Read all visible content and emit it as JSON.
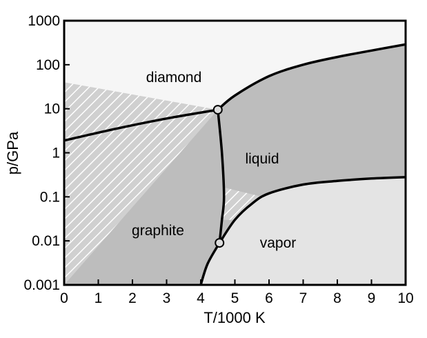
{
  "chart_data": {
    "type": "area",
    "xlabel": "T/1000 K",
    "ylabel": "p/GPa",
    "xlim": [
      0,
      10
    ],
    "ylim": [
      0.001,
      1000
    ],
    "y_scale": "log",
    "grid": false,
    "x_ticks": [
      {
        "value": 0,
        "label": "0"
      },
      {
        "value": 1,
        "label": "1"
      },
      {
        "value": 2,
        "label": "2"
      },
      {
        "value": 3,
        "label": "3"
      },
      {
        "value": 4,
        "label": "4"
      },
      {
        "value": 5,
        "label": "5"
      },
      {
        "value": 6,
        "label": "6"
      },
      {
        "value": 7,
        "label": "7"
      },
      {
        "value": 8,
        "label": "8"
      },
      {
        "value": 9,
        "label": "9"
      },
      {
        "value": 10,
        "label": "10"
      }
    ],
    "y_ticks": [
      {
        "value": 0.001,
        "label": "0.001"
      },
      {
        "value": 0.01,
        "label": "0.01"
      },
      {
        "value": 0.1,
        "label": "0.1"
      },
      {
        "value": 1,
        "label": "1"
      },
      {
        "value": 10,
        "label": "10"
      },
      {
        "value": 100,
        "label": "100"
      },
      {
        "value": 1000,
        "label": "1000"
      }
    ],
    "regions": [
      {
        "label": "diamond",
        "x": 3.5,
        "y": 100,
        "color": "#f6f6f6"
      },
      {
        "label": "liquid",
        "x": 5.8,
        "y": 1,
        "color": "#bdbdbd"
      },
      {
        "label": "graphite",
        "x": 2.8,
        "y": 0.01,
        "color": "#bdbdbd"
      },
      {
        "label": "vapor",
        "x": 6.2,
        "y": 0.008,
        "color": "#e4e4e4"
      }
    ],
    "phase_boundaries": [
      {
        "name": "graphite-diamond",
        "points": [
          [
            0,
            1.9
          ],
          [
            1.5,
            3.5
          ],
          [
            3,
            6
          ],
          [
            4.5,
            9.5
          ]
        ]
      },
      {
        "name": "diamond-liquid",
        "points": [
          [
            4.5,
            9.5
          ],
          [
            5,
            20
          ],
          [
            6,
            55
          ],
          [
            7,
            100
          ],
          [
            8,
            150
          ],
          [
            9,
            210
          ],
          [
            10,
            290
          ]
        ]
      },
      {
        "name": "graphite-liquid",
        "points": [
          [
            4.5,
            9.5
          ],
          [
            4.62,
            1
          ],
          [
            4.68,
            0.1
          ],
          [
            4.62,
            0.03
          ],
          [
            4.55,
            0.009
          ]
        ]
      },
      {
        "name": "graphite-vapor",
        "points": [
          [
            4,
            0.001
          ],
          [
            4.2,
            0.003
          ],
          [
            4.55,
            0.009
          ]
        ]
      },
      {
        "name": "liquid-vapor",
        "points": [
          [
            4.55,
            0.009
          ],
          [
            5,
            0.03
          ],
          [
            5.5,
            0.07
          ],
          [
            6,
            0.12
          ],
          [
            7,
            0.19
          ],
          [
            8,
            0.23
          ],
          [
            9,
            0.26
          ],
          [
            10,
            0.28
          ]
        ]
      }
    ],
    "hatched_regions": [
      {
        "name": "metastable-diamond",
        "points": [
          [
            0,
            40
          ],
          [
            4.5,
            9.5
          ],
          [
            0,
            0.001
          ]
        ]
      },
      {
        "name": "metastable-liquid",
        "points": [
          [
            4.72,
            0.16
          ],
          [
            5.8,
            0.1
          ],
          [
            5.5,
            0.07
          ],
          [
            5,
            0.03
          ],
          [
            4.64,
            0.03
          ]
        ]
      }
    ],
    "triple_points": [
      {
        "x": 4.5,
        "y": 9.5
      },
      {
        "x": 4.55,
        "y": 0.009
      }
    ],
    "colors": {
      "frame": "#000000",
      "line": "#000000",
      "hatch": "#ffffff",
      "marker_fill": "#dddddd"
    }
  }
}
